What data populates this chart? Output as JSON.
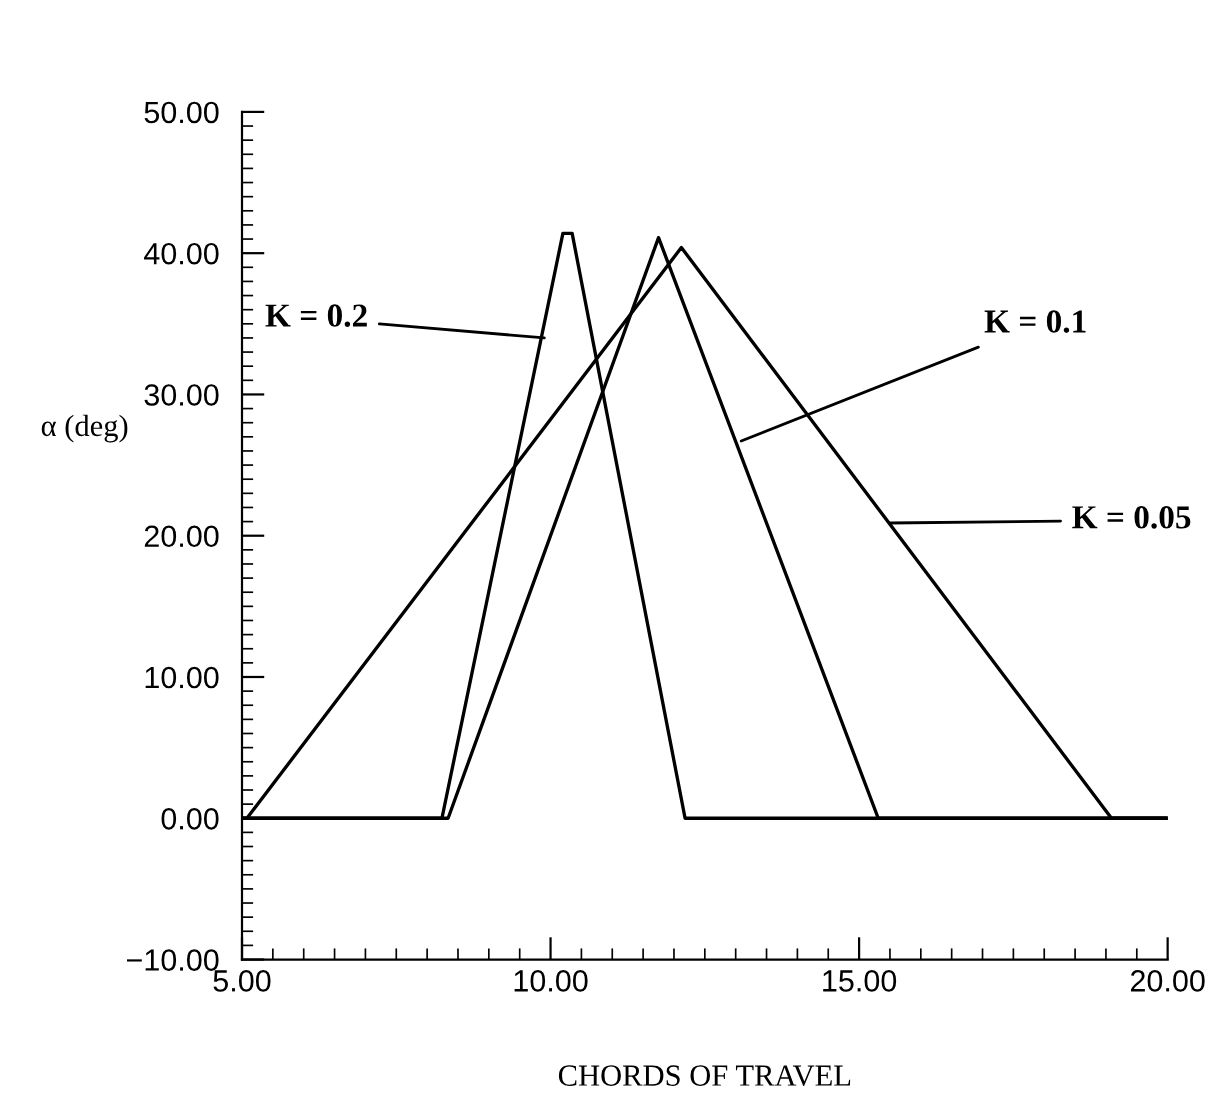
{
  "chart_data": {
    "type": "line",
    "xlabel": "CHORDS OF TRAVEL",
    "ylabel": "α (deg)",
    "series": [
      {
        "color": "#000000",
        "x": [
          5,
          8.24,
          10.2,
          10.35,
          12.18,
          20
        ],
        "values": [
          0,
          0,
          41.4,
          41.4,
          0,
          0
        ]
      },
      {
        "color": "#000000",
        "x": [
          5,
          8.34,
          11.75,
          15.31,
          20
        ],
        "values": [
          0,
          0,
          41.1,
          0,
          0
        ]
      },
      {
        "color": "#000000",
        "x": [
          5,
          5.08,
          12.12,
          19.09,
          20
        ],
        "values": [
          0,
          0,
          40.4,
          0,
          0
        ]
      }
    ],
    "annotations": [
      {
        "text": "K = 0.2",
        "x": 9.9,
        "y": 34.0
      },
      {
        "text": "K = 0.1",
        "x": 13.09,
        "y": 26.7
      },
      {
        "text": "K = 0.05",
        "x": 15.5,
        "y": 20.9
      }
    ],
    "xlim": [
      5,
      20
    ],
    "xticks": [
      {
        "value": 5,
        "label": "5.00"
      },
      {
        "value": 10,
        "label": "10.00"
      },
      {
        "value": 15,
        "label": "15.00"
      },
      {
        "value": 20,
        "label": "20.00"
      }
    ],
    "ylim": [
      -10,
      50
    ],
    "yticks": [
      {
        "value": -10,
        "label": "−10.00"
      },
      {
        "value": 0,
        "label": "0.00"
      },
      {
        "value": 10,
        "label": "10.00"
      },
      {
        "value": 20,
        "label": "20.00"
      },
      {
        "value": 30,
        "label": "30.00"
      },
      {
        "value": 40,
        "label": "40.00"
      },
      {
        "value": 50,
        "label": "50.00"
      }
    ],
    "grid": false,
    "line_style": "solid",
    "marker": "none"
  }
}
